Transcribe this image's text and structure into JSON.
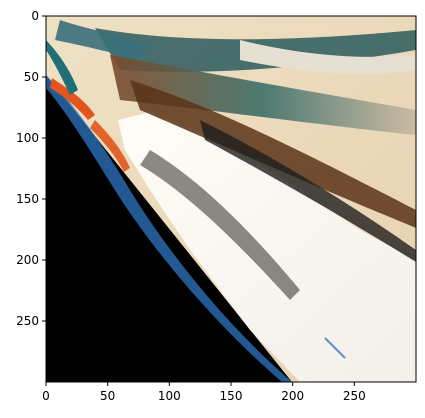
{
  "figure": {
    "kind": "matplotlib imshow of an abstract warped image",
    "x_axis": {
      "range": [
        0,
        300
      ],
      "ticks": [
        0,
        50,
        100,
        150,
        200,
        250
      ]
    },
    "y_axis": {
      "range": [
        300,
        0
      ],
      "inverted": true,
      "ticks": [
        0,
        50,
        100,
        150,
        200,
        250
      ]
    },
    "image_palette": {
      "black": "#000000",
      "cream": "#f1e4c8",
      "white_glare": "#fbf8f3",
      "teal": "#1f6f78",
      "brown": "#6b3f1e",
      "orange": "#e0561c",
      "blue": "#2b6fb8",
      "dark": "#222222"
    }
  }
}
